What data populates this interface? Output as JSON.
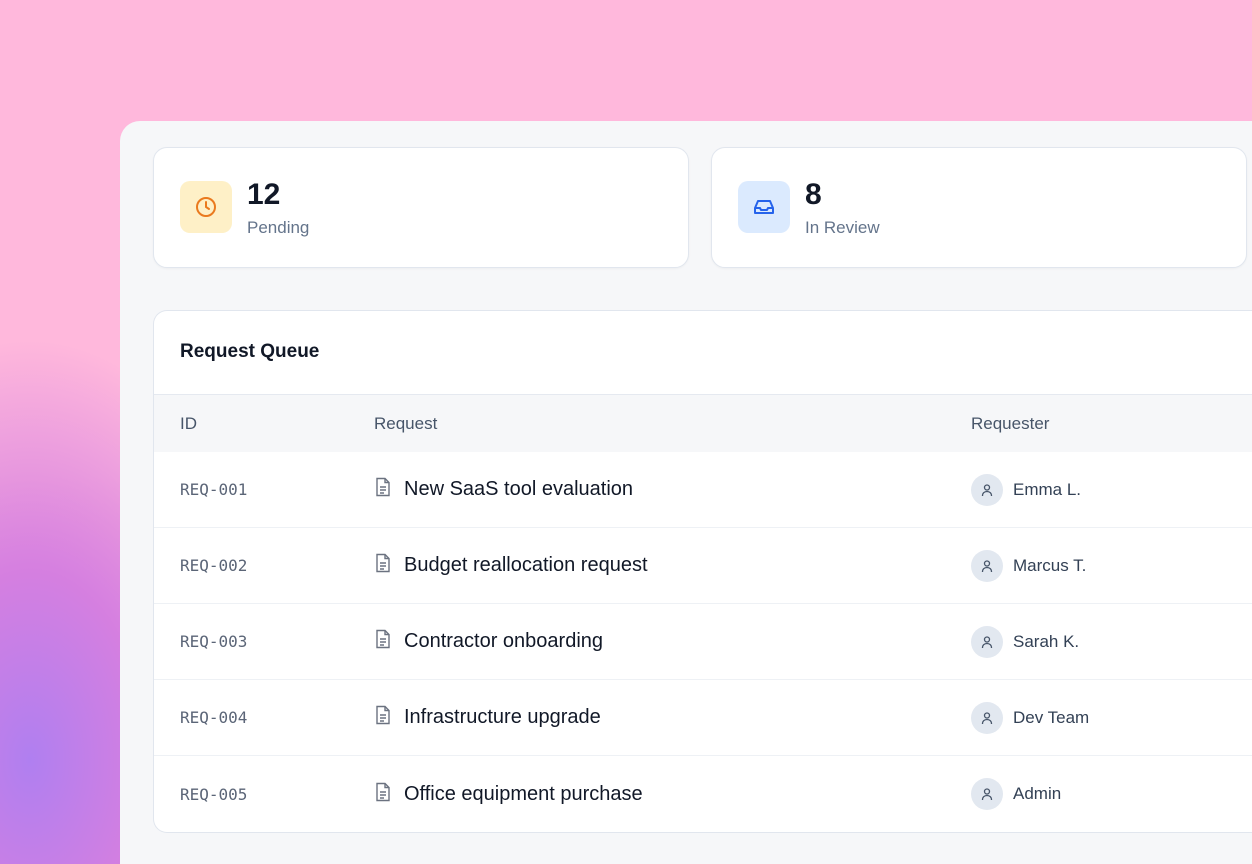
{
  "stats": [
    {
      "value": "12",
      "label": "Pending",
      "icon": "clock-icon",
      "icon_bg": "#fef0c7",
      "icon_color": "#ea7a1e"
    },
    {
      "value": "8",
      "label": "In Review",
      "icon": "inbox-icon",
      "icon_bg": "#dbeafe",
      "icon_color": "#2563eb"
    }
  ],
  "queue": {
    "title": "Request Queue",
    "columns": [
      "ID",
      "Request",
      "Requester"
    ],
    "rows": [
      {
        "id": "REQ-001",
        "request": "New SaaS tool evaluation",
        "requester": "Emma L."
      },
      {
        "id": "REQ-002",
        "request": "Budget reallocation request",
        "requester": "Marcus T."
      },
      {
        "id": "REQ-003",
        "request": "Contractor onboarding",
        "requester": "Sarah K."
      },
      {
        "id": "REQ-004",
        "request": "Infrastructure upgrade",
        "requester": "Dev Team"
      },
      {
        "id": "REQ-005",
        "request": "Office equipment purchase",
        "requester": "Admin"
      }
    ]
  }
}
